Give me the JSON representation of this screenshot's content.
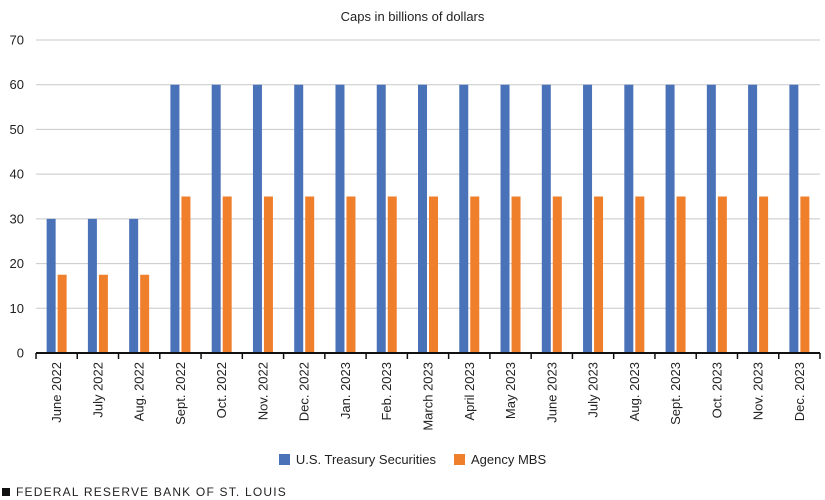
{
  "chart_data": {
    "type": "bar",
    "title": "Caps in billions of dollars",
    "xlabel": "",
    "ylabel": "",
    "ylim": [
      0,
      70
    ],
    "yticks": [
      0,
      10,
      20,
      30,
      40,
      50,
      60,
      70
    ],
    "grid": true,
    "legend_position": "bottom",
    "categories": [
      "June 2022",
      "July 2022",
      "Aug. 2022",
      "Sept. 2022",
      "Oct. 2022",
      "Nov. 2022",
      "Dec. 2022",
      "Jan. 2023",
      "Feb. 2023",
      "March 2023",
      "April 2023",
      "May 2023",
      "June 2023",
      "July 2023",
      "Aug. 2023",
      "Sept. 2023",
      "Oct. 2023",
      "Nov. 2023",
      "Dec. 2023"
    ],
    "series": [
      {
        "name": "U.S. Treasury Securities",
        "color": "#4a72b8",
        "values": [
          30,
          30,
          30,
          60,
          60,
          60,
          60,
          60,
          60,
          60,
          60,
          60,
          60,
          60,
          60,
          60,
          60,
          60,
          60
        ]
      },
      {
        "name": "Agency MBS",
        "color": "#f07f2c",
        "values": [
          17.5,
          17.5,
          17.5,
          35,
          35,
          35,
          35,
          35,
          35,
          35,
          35,
          35,
          35,
          35,
          35,
          35,
          35,
          35,
          35
        ]
      }
    ]
  },
  "footer": {
    "text": "FEDERAL RESERVE BANK OF ST. LOUIS"
  }
}
